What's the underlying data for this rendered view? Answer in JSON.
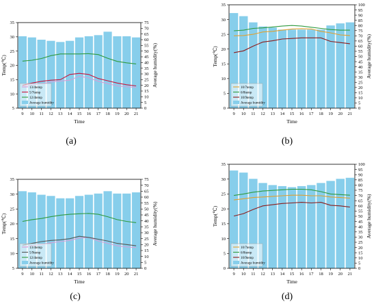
{
  "colors": {
    "bar": "#87ceeb",
    "pink": "#d4a0d8",
    "red": "#c8143c",
    "green": "#2e9a3e",
    "orange": "#e0a030",
    "dark": "#555555",
    "darkred": "#8b1a1a"
  },
  "chart_data": [
    {
      "panel_label": "(a)",
      "type": "bar",
      "x": [
        9,
        10,
        11,
        12,
        13,
        14,
        15,
        16,
        17,
        18,
        19,
        20,
        21
      ],
      "xlabel": "Time",
      "ylabel": "Temp(℃)",
      "y2label": "Average humidity(%)",
      "ylim": [
        5,
        35
      ],
      "y2lim": [
        0,
        75
      ],
      "yticks": [
        5,
        10,
        15,
        20,
        25,
        30,
        35
      ],
      "y2ticks": [
        0,
        5,
        10,
        15,
        20,
        25,
        30,
        35,
        40,
        45,
        50,
        55,
        60,
        65,
        70,
        75
      ],
      "legend": "bottom-left",
      "humidity": {
        "name": "Average humidity",
        "values": [
          63,
          62,
          60,
          59,
          58,
          59,
          62,
          63,
          64,
          67,
          63,
          63,
          62
        ]
      },
      "series": [
        {
          "name": "13/4temp",
          "color": "pink",
          "values": [
            12.5,
            13.2,
            13.5,
            14.2,
            14.5,
            14.8,
            16.2,
            15.6,
            14.4,
            13.6,
            12.8,
            12.5,
            12.3
          ]
        },
        {
          "name": "5/7temp",
          "color": "red",
          "values": [
            13.0,
            13.8,
            14.4,
            14.8,
            15.0,
            16.8,
            17.2,
            16.8,
            15.4,
            14.6,
            13.8,
            13.2,
            12.8
          ]
        },
        {
          "name": "12/4temp",
          "color": "green",
          "values": [
            21.5,
            21.8,
            22.4,
            23.4,
            24.0,
            24.0,
            24.0,
            24.1,
            23.8,
            22.5,
            21.4,
            20.9,
            20.5
          ]
        }
      ]
    },
    {
      "panel_label": "(b)",
      "type": "bar",
      "x": [
        9,
        10,
        11,
        12,
        13,
        14,
        15,
        16,
        17,
        18,
        19,
        20,
        21
      ],
      "xlabel": "Time",
      "ylabel": "Temp(℃)",
      "y2label": "Average humidity(%)",
      "ylim": [
        0,
        35
      ],
      "y2lim": [
        0,
        100
      ],
      "yticks": [
        0,
        5,
        10,
        15,
        20,
        25,
        30,
        35
      ],
      "y2ticks": [
        0,
        5,
        10,
        15,
        20,
        25,
        30,
        35,
        40,
        45,
        50,
        55,
        60,
        65,
        70,
        75,
        80,
        85,
        90,
        95,
        100
      ],
      "legend": "bottom-left",
      "humidity": {
        "name": "Average humidity",
        "values": [
          92,
          89,
          83,
          79,
          78,
          76,
          76,
          76,
          76,
          76,
          80,
          82,
          83
        ]
      },
      "series": [
        {
          "name": "10/7temp",
          "color": "orange",
          "values": [
            24.5,
            24.6,
            25.0,
            25.8,
            26.0,
            26.4,
            26.8,
            26.9,
            26.8,
            26.0,
            25.5,
            24.8,
            24.6
          ]
        },
        {
          "name": "6/8temp",
          "color": "green",
          "values": [
            26.2,
            26.4,
            27.0,
            27.2,
            27.5,
            27.8,
            28.0,
            27.8,
            27.4,
            27.0,
            26.6,
            26.4,
            26.4
          ]
        },
        {
          "name": "10/9temp",
          "color": "darkred",
          "values": [
            18.8,
            19.4,
            21.0,
            22.4,
            22.8,
            23.4,
            23.6,
            23.8,
            23.8,
            23.8,
            22.6,
            22.2,
            21.8
          ]
        }
      ]
    },
    {
      "panel_label": "(c)",
      "type": "bar",
      "x": [
        9,
        10,
        11,
        12,
        13,
        14,
        15,
        16,
        17,
        18,
        19,
        20,
        21
      ],
      "xlabel": "Time",
      "ylabel": "Temp(℃)",
      "y2label": "Average humidity(%)",
      "ylim": [
        5,
        35
      ],
      "y2lim": [
        0,
        75
      ],
      "yticks": [
        5,
        10,
        15,
        20,
        25,
        30,
        35
      ],
      "y2ticks": [
        0,
        5,
        10,
        15,
        20,
        25,
        30,
        35,
        40,
        45,
        50,
        55,
        60,
        65,
        70,
        75
      ],
      "legend": "bottom-left",
      "humidity": {
        "name": "Average humidity",
        "values": [
          65,
          64,
          62,
          61,
          59,
          59,
          61,
          62,
          63,
          65,
          63,
          63,
          64
        ]
      },
      "series": [
        {
          "name": "13/4temp",
          "color": "pink",
          "values": [
            12.2,
            12.6,
            13.0,
            13.6,
            14.0,
            14.4,
            15.2,
            15.4,
            14.2,
            13.4,
            12.6,
            12.2,
            12.0
          ]
        },
        {
          "name": "5/9temp",
          "color": "dark",
          "values": [
            12.8,
            13.4,
            14.0,
            14.4,
            14.6,
            15.0,
            15.8,
            15.4,
            14.8,
            14.2,
            13.4,
            13.0,
            12.6
          ]
        },
        {
          "name": "12/4temp",
          "color": "green",
          "values": [
            20.8,
            21.4,
            21.8,
            22.4,
            22.9,
            23.2,
            23.4,
            23.5,
            23.2,
            22.4,
            21.4,
            20.8,
            20.4
          ]
        }
      ]
    },
    {
      "panel_label": "(d)",
      "type": "bar",
      "x": [
        9,
        10,
        11,
        12,
        13,
        14,
        15,
        16,
        17,
        18,
        19,
        20,
        21
      ],
      "xlabel": "Time",
      "ylabel": "Temp(℃)",
      "y2label": "Average humidity(%)",
      "ylim": [
        0,
        35
      ],
      "y2lim": [
        0,
        100
      ],
      "yticks": [
        0,
        5,
        10,
        15,
        20,
        25,
        30,
        35
      ],
      "y2ticks": [
        0,
        5,
        10,
        15,
        20,
        25,
        30,
        35,
        40,
        45,
        50,
        55,
        60,
        65,
        70,
        75,
        80,
        85,
        90,
        95,
        100
      ],
      "legend": "bottom-left",
      "humidity": {
        "name": "Average humidity",
        "values": [
          94,
          92,
          86,
          82,
          80,
          79,
          78,
          79,
          80,
          82,
          84,
          86,
          87
        ]
      },
      "series": [
        {
          "name": "10/7temp",
          "color": "orange",
          "values": [
            23.0,
            23.4,
            23.8,
            24.0,
            24.2,
            24.4,
            24.6,
            24.6,
            24.4,
            24.4,
            24.0,
            23.8,
            23.6
          ]
        },
        {
          "name": "6/8temp",
          "color": "green",
          "values": [
            24.5,
            25.0,
            25.6,
            26.0,
            26.2,
            26.4,
            26.6,
            26.6,
            26.4,
            25.8,
            25.0,
            24.8,
            24.6
          ]
        },
        {
          "name": "10/9temp",
          "color": "darkred",
          "values": [
            17.6,
            18.4,
            19.8,
            21.0,
            21.4,
            21.8,
            22.0,
            22.2,
            22.0,
            22.2,
            21.2,
            21.0,
            20.6
          ]
        }
      ]
    }
  ]
}
